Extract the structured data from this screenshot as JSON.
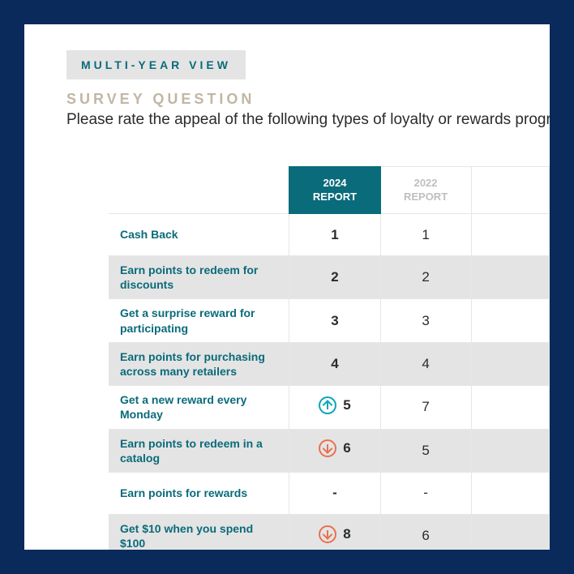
{
  "colors": {
    "frame": "#0a2a5c",
    "page_bg": "#ffffff",
    "badge_bg": "#e4e4e4",
    "teal": "#0a6b7a",
    "sand": "#c2b6a4",
    "text": "#2b2b2b",
    "muted": "#bfbfbf",
    "stripe": "#e4e4e4",
    "border": "#e6e6e6",
    "trend_up": "#0aa6b8",
    "trend_down": "#e8714f"
  },
  "header": {
    "badge": "MULTI-YEAR VIEW",
    "section_label": "SURVEY QUESTION",
    "prompt": "Please rate the appeal of the following types of loyalty or rewards program benefits."
  },
  "table": {
    "columns": [
      {
        "year": "2024",
        "sub": "REPORT",
        "active": true
      },
      {
        "year": "2022",
        "sub": "REPORT",
        "active": false
      },
      {
        "year": "",
        "sub": "",
        "active": false
      }
    ],
    "rows": [
      {
        "label": "Cash Back",
        "stripe": false,
        "cells": [
          {
            "value": "1",
            "trend": null
          },
          {
            "value": "1",
            "trend": null
          },
          {
            "value": "",
            "trend": null
          }
        ]
      },
      {
        "label": "Earn points to redeem for discounts",
        "stripe": true,
        "cells": [
          {
            "value": "2",
            "trend": null
          },
          {
            "value": "2",
            "trend": null
          },
          {
            "value": "",
            "trend": null
          }
        ]
      },
      {
        "label": "Get a surprise reward for participating",
        "stripe": false,
        "cells": [
          {
            "value": "3",
            "trend": null
          },
          {
            "value": "3",
            "trend": null
          },
          {
            "value": "",
            "trend": null
          }
        ]
      },
      {
        "label": "Earn points for purchasing across many retailers",
        "stripe": true,
        "cells": [
          {
            "value": "4",
            "trend": null
          },
          {
            "value": "4",
            "trend": null
          },
          {
            "value": "",
            "trend": null
          }
        ]
      },
      {
        "label": "Get a new reward every Monday",
        "stripe": false,
        "cells": [
          {
            "value": "5",
            "trend": "up"
          },
          {
            "value": "7",
            "trend": null
          },
          {
            "value": "",
            "trend": null
          }
        ]
      },
      {
        "label": "Earn points to redeem in a catalog",
        "stripe": true,
        "cells": [
          {
            "value": "6",
            "trend": "down"
          },
          {
            "value": "5",
            "trend": null
          },
          {
            "value": "",
            "trend": null
          }
        ]
      },
      {
        "label": "Earn points for rewards",
        "stripe": false,
        "cells": [
          {
            "value": "-",
            "trend": null
          },
          {
            "value": "-",
            "trend": null
          },
          {
            "value": "",
            "trend": null
          }
        ]
      },
      {
        "label": "Get $10 when you spend $100",
        "stripe": true,
        "cells": [
          {
            "value": "8",
            "trend": "down"
          },
          {
            "value": "6",
            "trend": null
          },
          {
            "value": "",
            "trend": null
          }
        ]
      }
    ]
  }
}
